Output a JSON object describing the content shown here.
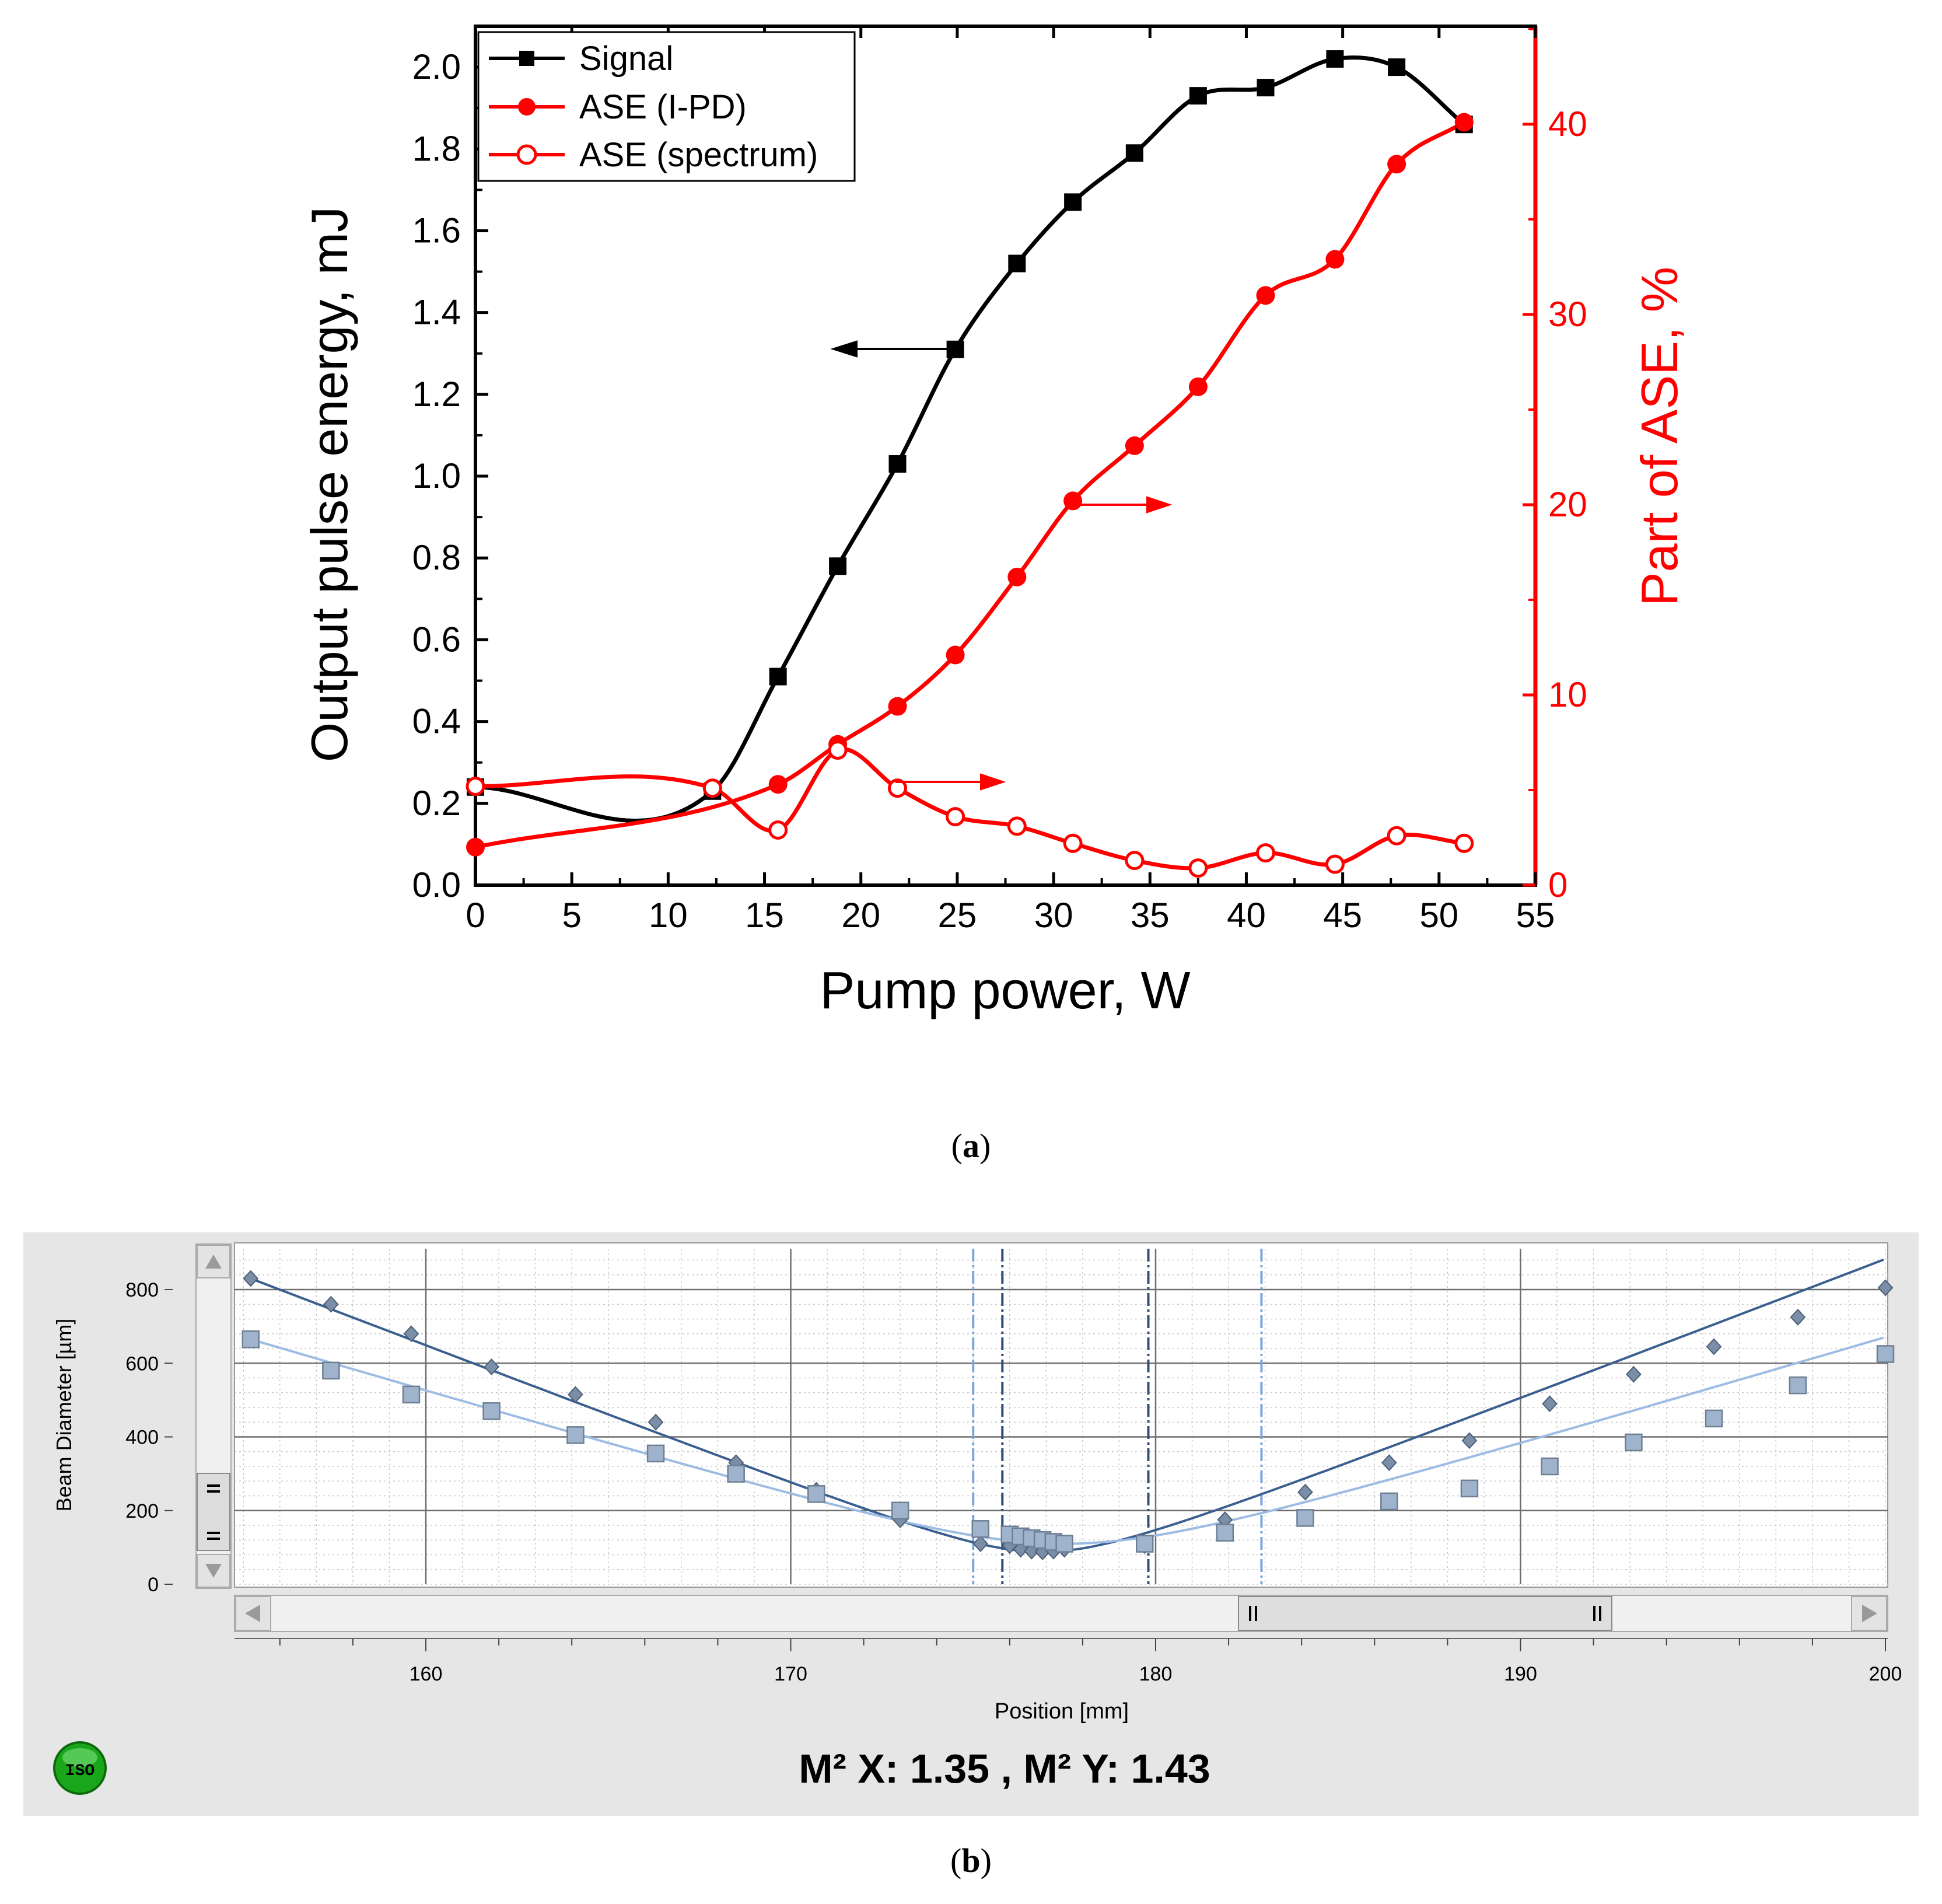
{
  "colors": {
    "signal": "#000000",
    "ase": "#ff0000",
    "panel_bg": "#e6e6e6",
    "x_series": "#3a5f8f",
    "y_series": "#9dbce3",
    "x_marker": "#7b8ea8",
    "y_marker": "#9fb3cc",
    "iso_green": "#1aa61a"
  },
  "panel_a": {
    "caption": "a",
    "chart_data": {
      "type": "line",
      "xlabel": "Pump power, W",
      "ylabel_left": "Output pulse energy, mJ",
      "ylabel_right": "Part of ASE, %",
      "xlim": [
        0,
        55
      ],
      "ylim_left": [
        0,
        2.1
      ],
      "ylim_right": [
        0,
        45.15
      ],
      "x_ticks": [
        "0",
        "5",
        "10",
        "15",
        "20",
        "25",
        "30",
        "35",
        "40",
        "45",
        "50",
        "55"
      ],
      "y_left_ticks": [
        "0.0",
        "0.2",
        "0.4",
        "0.6",
        "0.8",
        "1.0",
        "1.2",
        "1.4",
        "1.6",
        "1.8",
        "2.0"
      ],
      "y_right_ticks": [
        "0",
        "10",
        "20",
        "30",
        "40"
      ],
      "legend": [
        "Signal",
        "ASE (I-PD)",
        "ASE (spectrum)"
      ],
      "series": [
        {
          "name": "Signal",
          "axis": "left",
          "marker": "filled-square",
          "x": [
            0,
            12.3,
            15.7,
            18.8,
            21.9,
            24.9,
            28.1,
            31.0,
            34.2,
            37.5,
            41.0,
            44.6,
            47.8,
            51.3
          ],
          "y": [
            0.24,
            0.23,
            0.51,
            0.78,
            1.03,
            1.31,
            1.52,
            1.67,
            1.79,
            1.93,
            1.95,
            2.02,
            2.0,
            1.86
          ]
        },
        {
          "name": "ASE (I-PD)",
          "axis": "right",
          "marker": "filled-circle",
          "x": [
            0,
            15.7,
            18.8,
            21.9,
            24.9,
            28.1,
            31.0,
            34.2,
            37.5,
            41.0,
            44.6,
            47.8,
            51.3
          ],
          "y": [
            2.0,
            5.3,
            7.4,
            9.4,
            12.1,
            16.2,
            20.2,
            23.1,
            26.2,
            31.0,
            32.9,
            37.9,
            40.1
          ]
        },
        {
          "name": "ASE (spectrum)",
          "axis": "right",
          "marker": "open-circle",
          "x": [
            0,
            12.3,
            15.7,
            18.8,
            21.9,
            24.9,
            28.1,
            31.0,
            34.2,
            37.5,
            41.0,
            44.6,
            47.8,
            51.3
          ],
          "y": [
            5.2,
            5.1,
            2.9,
            7.1,
            5.1,
            3.6,
            3.1,
            2.2,
            1.3,
            0.9,
            1.7,
            1.1,
            2.6,
            2.2
          ]
        }
      ]
    }
  },
  "panel_b": {
    "caption": "b",
    "m2_text": "M² X: 1.35 , M² Y: 1.43",
    "iso_badge": "ISO",
    "icons": {
      "scroll_up": "triangle-up-icon",
      "scroll_down": "triangle-down-icon",
      "scroll_left": "triangle-left-icon",
      "scroll_right": "triangle-right-icon",
      "grip": "grip-icon"
    },
    "chart_data": {
      "type": "scatter",
      "xlabel": "Position [mm]",
      "ylabel": "Beam Diameter [µm]",
      "xlim": [
        155,
        200
      ],
      "ylim": [
        0,
        900
      ],
      "x_ticks": [
        "160",
        "170",
        "180",
        "190",
        "200"
      ],
      "y_ticks": [
        "0",
        "200",
        "400",
        "600",
        "800"
      ],
      "vertical_markers": [
        {
          "x": 175.0,
          "series": "Y"
        },
        {
          "x": 175.8,
          "series": "X"
        },
        {
          "x": 179.8,
          "series": "X"
        },
        {
          "x": 182.9,
          "series": "Y"
        }
      ],
      "series": [
        {
          "name": "X",
          "marker": "diamond",
          "x": [
            155.2,
            157.4,
            159.6,
            161.8,
            164.1,
            166.3,
            168.5,
            170.7,
            173.0,
            175.2,
            176.0,
            176.3,
            176.6,
            176.9,
            177.2,
            177.5,
            179.7,
            181.9,
            184.1,
            186.4,
            188.6,
            190.8,
            193.1,
            195.3,
            197.6,
            200.0
          ],
          "y": [
            830,
            760,
            680,
            590,
            515,
            440,
            330,
            255,
            175,
            110,
            105,
            95,
            90,
            88,
            90,
            95,
            105,
            175,
            250,
            330,
            390,
            490,
            570,
            645,
            725,
            805
          ]
        },
        {
          "name": "Y",
          "marker": "square",
          "x": [
            155.2,
            157.4,
            159.6,
            161.8,
            164.1,
            166.3,
            168.5,
            170.7,
            173.0,
            175.2,
            176.0,
            176.3,
            176.6,
            176.9,
            177.2,
            177.5,
            179.7,
            181.9,
            184.1,
            186.4,
            188.6,
            190.8,
            193.1,
            195.3,
            197.6,
            200.0
          ],
          "y": [
            665,
            580,
            515,
            470,
            405,
            355,
            300,
            245,
            200,
            150,
            135,
            130,
            125,
            120,
            115,
            110,
            110,
            140,
            180,
            225,
            260,
            320,
            385,
            450,
            540,
            625
          ]
        }
      ]
    }
  }
}
